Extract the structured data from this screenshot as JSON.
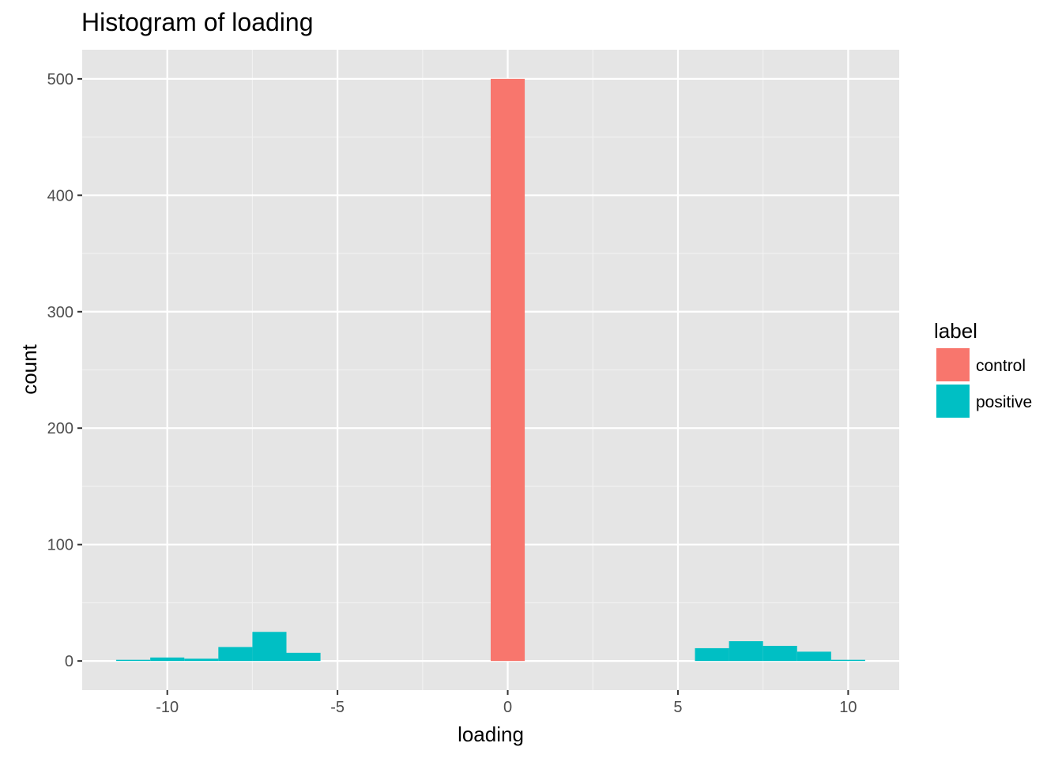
{
  "chart_data": {
    "type": "bar",
    "title": "Histogram of loading",
    "xlabel": "loading",
    "ylabel": "count",
    "xlim": [
      -12.5,
      11.5
    ],
    "ylim": [
      -25,
      525
    ],
    "x_ticks": [
      -10,
      -5,
      0,
      5,
      10
    ],
    "y_ticks": [
      0,
      100,
      200,
      300,
      400,
      500
    ],
    "bin_width": 1,
    "grid": true,
    "legend": {
      "title": "label",
      "position": "right",
      "entries": [
        {
          "name": "control",
          "color": "#F8766D"
        },
        {
          "name": "positive",
          "color": "#00BFC4"
        }
      ]
    },
    "series": [
      {
        "name": "control",
        "color": "#F8766D",
        "bins": [
          {
            "x": 0,
            "count": 500
          }
        ]
      },
      {
        "name": "positive",
        "color": "#00BFC4",
        "bins": [
          {
            "x": -11,
            "count": 1
          },
          {
            "x": -10,
            "count": 3
          },
          {
            "x": -9,
            "count": 2
          },
          {
            "x": -8,
            "count": 12
          },
          {
            "x": -7,
            "count": 25
          },
          {
            "x": -6,
            "count": 7
          },
          {
            "x": 6,
            "count": 11
          },
          {
            "x": 7,
            "count": 17
          },
          {
            "x": 8,
            "count": 13
          },
          {
            "x": 9,
            "count": 8
          },
          {
            "x": 10,
            "count": 1
          }
        ]
      }
    ]
  }
}
